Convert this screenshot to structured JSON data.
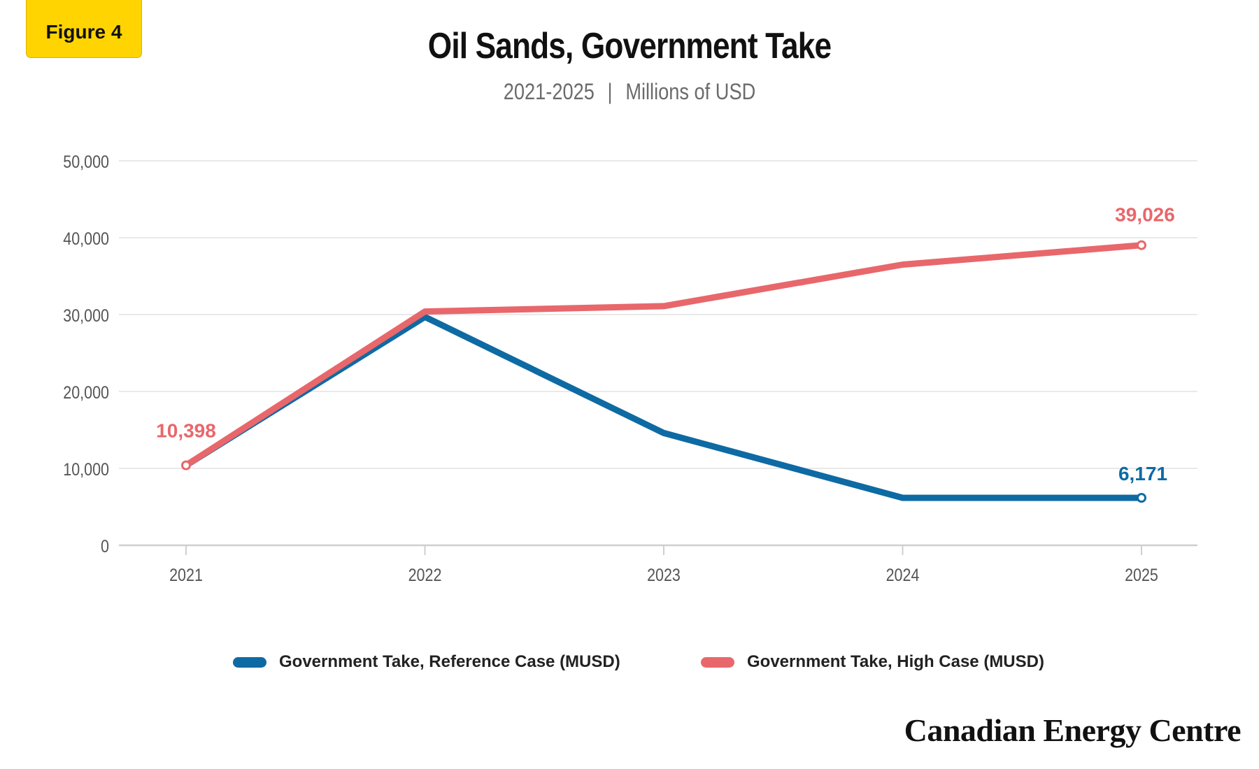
{
  "badge": "Figure 4",
  "header": {
    "title": "Oil Sands, Government Take",
    "subtitle_range": "2021-2025",
    "subtitle_sep": "|",
    "subtitle_units": "Millions of USD"
  },
  "brand": "Canadian Energy Centre",
  "colors": {
    "reference": "#0E6AA3",
    "high": "#E8676B",
    "grid": "#e2e2e2",
    "axis": "#cfcfcf",
    "tick": "#555555"
  },
  "chart_data": {
    "type": "line",
    "x": [
      "2021",
      "2022",
      "2023",
      "2024",
      "2025"
    ],
    "ylim": [
      0,
      50000
    ],
    "yticks": [
      0,
      10000,
      20000,
      30000,
      40000,
      50000
    ],
    "ytick_labels": [
      "0",
      "10,000",
      "20,000",
      "30,000",
      "40,000",
      "50,000"
    ],
    "grid": true,
    "legend_position": "bottom",
    "series": [
      {
        "name": "Government Take, Reference Case (MUSD)",
        "color": "#0E6AA3",
        "values": [
          10398,
          29700,
          14600,
          6171,
          6171
        ],
        "end_label": "6,171"
      },
      {
        "name": "Government Take, High Case (MUSD)",
        "color": "#E8676B",
        "values": [
          10398,
          30400,
          31100,
          36500,
          39026
        ],
        "start_label": "10,398",
        "end_label": "39,026"
      }
    ]
  }
}
